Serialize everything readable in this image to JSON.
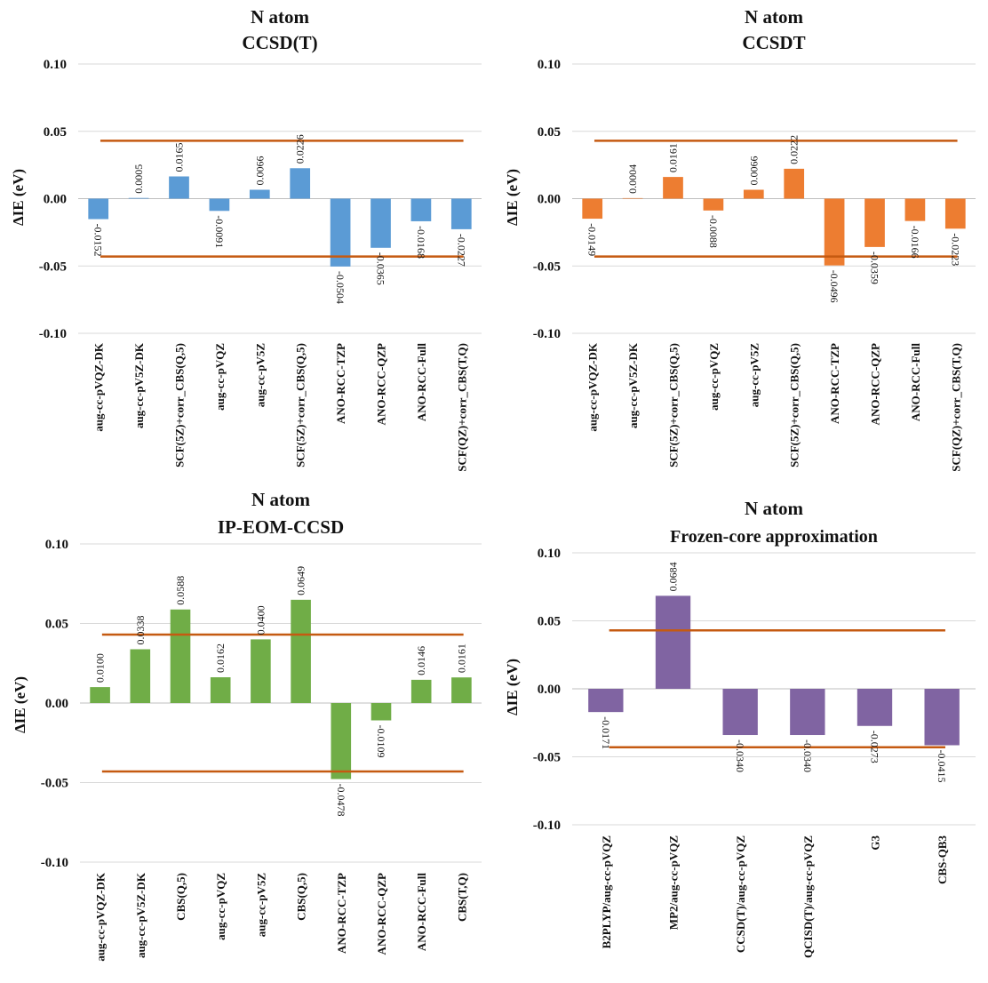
{
  "accent_colors": {
    "reference_line": "#C55A11"
  },
  "chart_data": [
    {
      "type": "bar",
      "title": "N atom",
      "subtitle": "CCSD(T)",
      "ylabel": "ΔIE (eV)",
      "ylim": [
        -0.1,
        0.1
      ],
      "yticks": [
        "0.10",
        "0.05",
        "0.00",
        "-0.05",
        "-0.10"
      ],
      "ytick_values": [
        0.1,
        0.05,
        0.0,
        -0.05,
        -0.1
      ],
      "grid": true,
      "color": "#5B9BD5",
      "reference_lines": [
        0.043,
        -0.043
      ],
      "categories": [
        "aug-cc-pVQZ-DK",
        "aug-cc-pV5Z-DK",
        "SCF(5Z)+corr_CBS(Q,5)",
        "aug-cc-pVQZ",
        "aug-cc-pV5Z",
        "SCF(5Z)+corr_CBS(Q,5)",
        "ANO-RCC-TZP",
        "ANO-RCC-QZP",
        "ANO-RCC-Full",
        "SCF(QZ)+corr_CBS(T,Q)"
      ],
      "values": [
        -0.0152,
        0.0005,
        0.0165,
        -0.0091,
        0.0066,
        0.0226,
        -0.0504,
        -0.0365,
        -0.0168,
        -0.0227
      ],
      "labels": [
        "-0.0152",
        "0.0005",
        "0.0165",
        "-0.0091",
        "0.0066",
        "0.0226",
        "-0.0504",
        "-0.0365",
        "-0.0168",
        "-0.0227"
      ]
    },
    {
      "type": "bar",
      "title": "N atom",
      "subtitle": "CCSDT",
      "ylabel": "ΔIE (eV)",
      "ylim": [
        -0.1,
        0.1
      ],
      "yticks": [
        "0.10",
        "0.05",
        "0.00",
        "-0.05",
        "-0.10"
      ],
      "ytick_values": [
        0.1,
        0.05,
        0.0,
        -0.05,
        -0.1
      ],
      "grid": true,
      "color": "#ED7D31",
      "reference_lines": [
        0.043,
        -0.043
      ],
      "categories": [
        "aug-cc-pVQZ-DK",
        "aug-cc-pV5Z-DK",
        "SCF(5Z)+corr_CBS(Q,5)",
        "aug-cc-pVQZ",
        "aug-cc-pV5Z",
        "SCF(5Z)+corr_CBS(Q,5)",
        "ANO-RCC-TZP",
        "ANO-RCC-QZP",
        "ANO-RCC-Full",
        "SCF(QZ)+corr_CBS(T,Q)"
      ],
      "values": [
        -0.0149,
        0.0004,
        0.0161,
        -0.0088,
        0.0066,
        0.0222,
        -0.0496,
        -0.0359,
        -0.0166,
        -0.0223
      ],
      "labels": [
        "-0.0149",
        "0.0004",
        "0.0161",
        "-0.0088",
        "0.0066",
        "0.0222",
        "-0.0496",
        "-0.0359",
        "-0.0166",
        "-0.0223"
      ]
    },
    {
      "type": "bar",
      "title": "N atom",
      "subtitle": "IP-EOM-CCSD",
      "ylabel": "ΔIE (eV)",
      "ylim": [
        -0.1,
        0.1
      ],
      "yticks": [
        "0.10",
        "0.05",
        "0.00",
        "-0.05",
        "-0.10"
      ],
      "ytick_values": [
        0.1,
        0.05,
        0.0,
        -0.05,
        -0.1
      ],
      "grid": true,
      "color": "#70AD47",
      "reference_lines": [
        0.043,
        -0.043
      ],
      "categories": [
        "aug-cc-pVQZ-DK",
        "aug-cc-pV5Z-DK",
        "CBS(Q,5)",
        "aug-cc-pVQZ",
        "aug-cc-pV5Z",
        "CBS(Q,5)",
        "ANO-RCC-TZP",
        "ANO-RCC-QZP",
        "ANO-RCC-Full",
        "CBS(T,Q)"
      ],
      "values": [
        0.01,
        0.0338,
        0.0588,
        0.0162,
        0.04,
        0.0649,
        -0.0478,
        -0.0109,
        0.0146,
        0.0161
      ],
      "labels": [
        "0.0100",
        "0.0338",
        "0.0588",
        "0.0162",
        "0.0400",
        "0.0649",
        "-0.0478",
        "-0.0109",
        "0.0146",
        "0.0161"
      ]
    },
    {
      "type": "bar",
      "title": "N atom",
      "subtitle": "Frozen-core approximation",
      "ylabel": "ΔIE (eV)",
      "ylim": [
        -0.1,
        0.1
      ],
      "yticks": [
        "0.10",
        "0.05",
        "0.00",
        "-0.05",
        "-0.10"
      ],
      "ytick_values": [
        0.1,
        0.05,
        0.0,
        -0.05,
        -0.1
      ],
      "grid": true,
      "color": "#8064A2",
      "reference_lines": [
        0.043,
        -0.043
      ],
      "categories": [
        "B2PLYP/aug-cc-pVQZ",
        "MP2/aug-cc-pVQZ",
        "CCSD(T)/aug-cc-pVQZ",
        "QCISD(T)/aug-cc-pVQZ",
        "G3",
        "CBS-QB3"
      ],
      "values": [
        -0.0171,
        0.0684,
        -0.034,
        -0.034,
        -0.0273,
        -0.0415
      ],
      "labels": [
        "-0.0171",
        "0.0684",
        "-0.0340",
        "-0.0340",
        "-0.0273",
        "-0.0415"
      ]
    }
  ]
}
